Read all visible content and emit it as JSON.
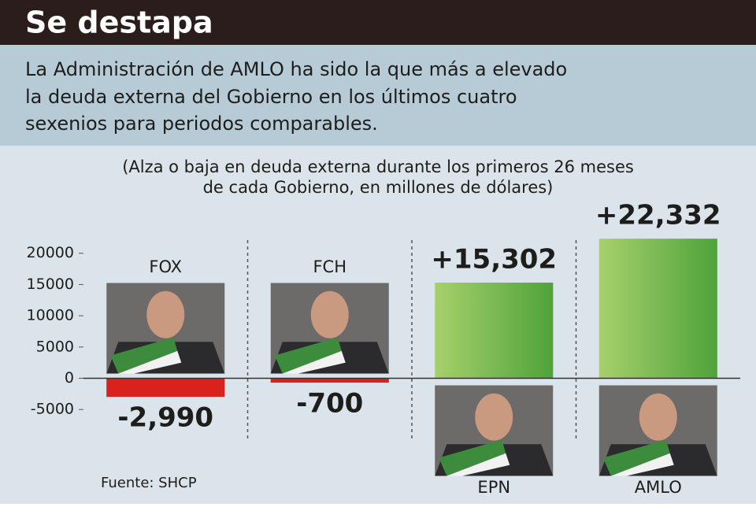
{
  "chart_data": {
    "type": "bar",
    "title": "Se destapa",
    "subtitle": [
      "La Administración de AMLO ha sido la que más a elevado",
      "la deuda externa del Gobierno en los últimos cuatro",
      "sexenios para periodos comparables."
    ],
    "note": [
      "(Alza o baja en deuda externa durante los primeros 26 meses",
      "de cada Gobierno, en millones de dólares)"
    ],
    "source": "Fuente: SHCP",
    "categories": [
      "FOX",
      "FCH",
      "EPN",
      "AMLO"
    ],
    "values": [
      -2990,
      -700,
      15302,
      22332
    ],
    "value_labels": [
      "-2,990",
      "-700",
      "+15,302",
      "+22,332"
    ],
    "positive_color": "#7cb342",
    "negative_color": "#d9211e",
    "ylim": [
      -7500,
      25000
    ],
    "yticks": [
      -5000,
      0,
      5000,
      10000,
      15000,
      20000
    ]
  }
}
